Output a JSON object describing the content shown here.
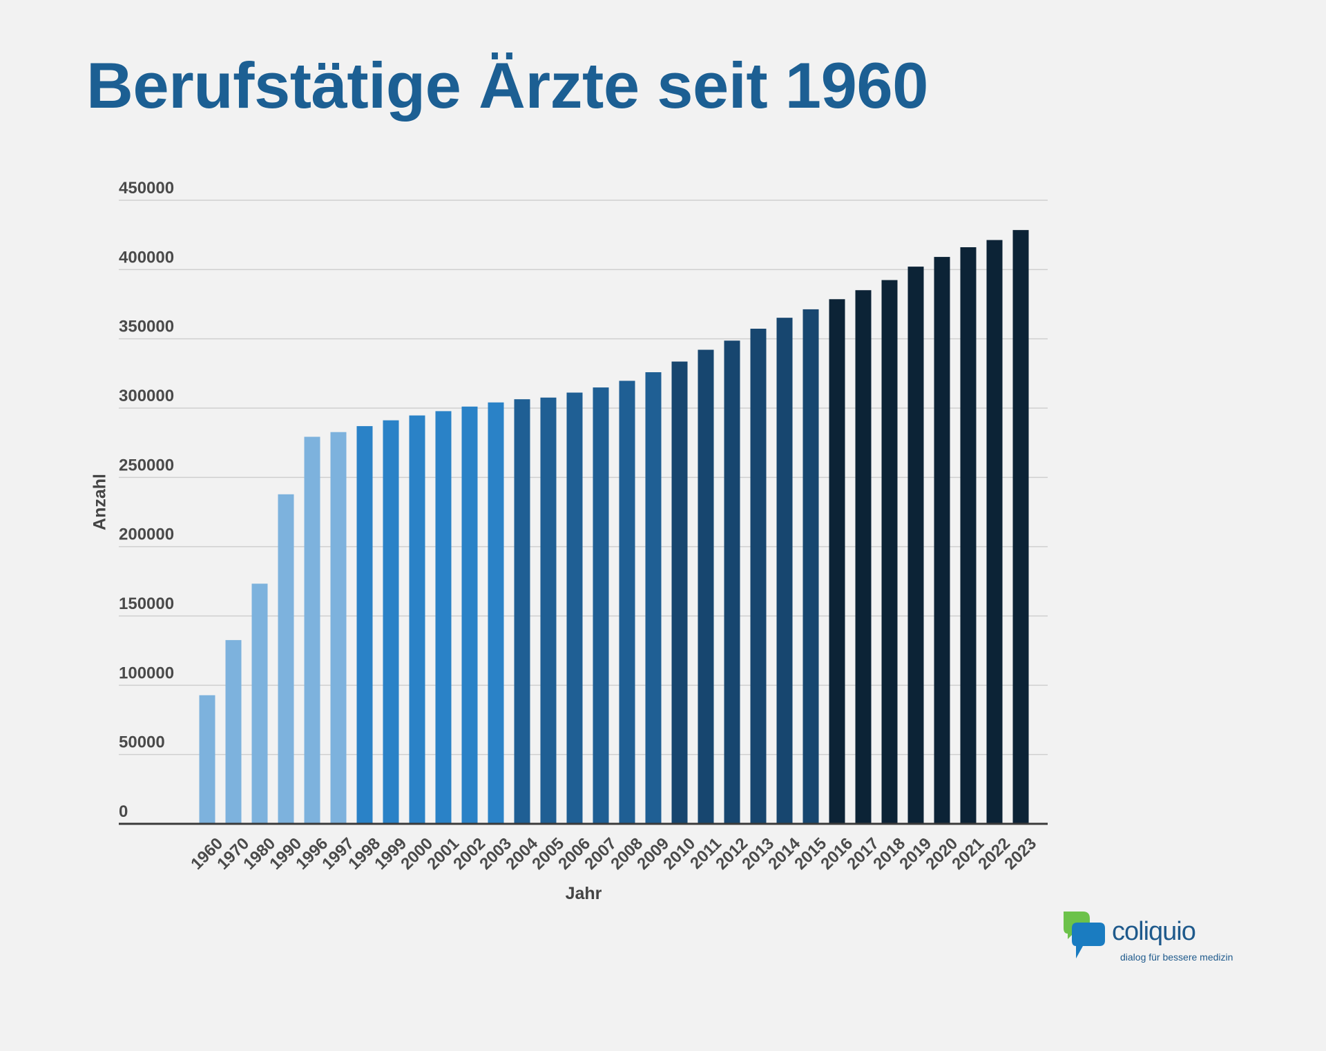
{
  "title": "Berufstätige Ärzte seit 1960",
  "chart_data": {
    "type": "bar",
    "xlabel": "Jahr",
    "ylabel": "Anzahl",
    "ylim": [
      0,
      450000
    ],
    "yticks": [
      0,
      50000,
      100000,
      150000,
      200000,
      250000,
      300000,
      350000,
      400000,
      450000
    ],
    "grid": true,
    "categories": [
      "1960",
      "1970",
      "1980",
      "1990",
      "1996",
      "1997",
      "1998",
      "1999",
      "2000",
      "2001",
      "2002",
      "2003",
      "2004",
      "2005",
      "2006",
      "2007",
      "2008",
      "2009",
      "2010",
      "2011",
      "2012",
      "2013",
      "2014",
      "2015",
      "2016",
      "2017",
      "2018",
      "2019",
      "2020",
      "2021",
      "2022",
      "2023"
    ],
    "values": [
      92800,
      132600,
      173300,
      237800,
      279300,
      282700,
      287000,
      291200,
      294700,
      297800,
      301100,
      304100,
      306400,
      307600,
      311200,
      314900,
      319700,
      325900,
      333600,
      342100,
      348700,
      357300,
      365200,
      371300,
      378600,
      385100,
      392400,
      402100,
      409100,
      416100,
      421300,
      428500
    ],
    "colors": [
      "#7db2dd",
      "#7db2dd",
      "#7db2dd",
      "#7db2dd",
      "#7db2dd",
      "#7db2dd",
      "#2a82c7",
      "#2a82c7",
      "#2a82c7",
      "#2a82c7",
      "#2a82c7",
      "#2a82c7",
      "#1f5f94",
      "#1f5f94",
      "#1f5f94",
      "#1f5f94",
      "#1f5f94",
      "#1f5f94",
      "#17466f",
      "#17466f",
      "#17466f",
      "#17466f",
      "#17466f",
      "#17466f",
      "#0c2336",
      "#0c2336",
      "#0c2336",
      "#0c2336",
      "#0c2336",
      "#0c2336",
      "#0c2336",
      "#0c2336"
    ]
  },
  "logo": {
    "name": "coliquio",
    "tagline": "dialog für bessere medizin"
  }
}
